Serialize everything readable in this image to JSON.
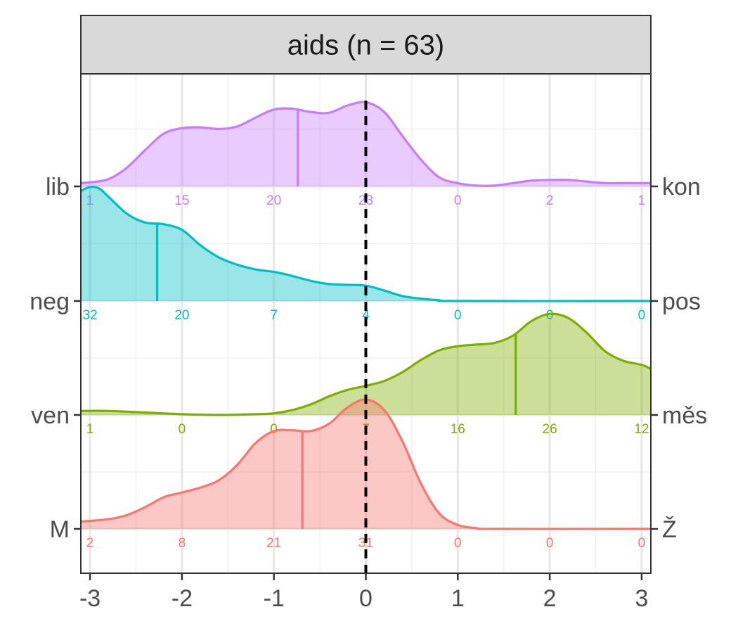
{
  "chart_data": {
    "type": "ridgeline density",
    "title": "aids (n = 63)",
    "x_ticks": [
      -3,
      -2,
      -1,
      0,
      1,
      2,
      3
    ],
    "xlim": [
      -3.1,
      3.1
    ],
    "reference_line_x": 0,
    "series": [
      {
        "left_label": "lib",
        "right_label": "kon",
        "color": "#C77CFF",
        "mean": -0.74,
        "counts": [
          {
            "x": -3,
            "label": "1"
          },
          {
            "x": -2,
            "label": "15"
          },
          {
            "x": -1,
            "label": "20"
          },
          {
            "x": 0,
            "label": "23"
          },
          {
            "x": 1,
            "label": "0"
          },
          {
            "x": 2,
            "label": "2"
          },
          {
            "x": 3,
            "label": "1"
          }
        ],
        "density": [
          [
            -3.1,
            0.04
          ],
          [
            -3.0,
            0.05
          ],
          [
            -2.8,
            0.09
          ],
          [
            -2.6,
            0.23
          ],
          [
            -2.4,
            0.45
          ],
          [
            -2.2,
            0.65
          ],
          [
            -2.0,
            0.72
          ],
          [
            -1.8,
            0.73
          ],
          [
            -1.6,
            0.71
          ],
          [
            -1.4,
            0.74
          ],
          [
            -1.2,
            0.85
          ],
          [
            -1.0,
            0.95
          ],
          [
            -0.8,
            0.96
          ],
          [
            -0.6,
            0.92
          ],
          [
            -0.4,
            0.91
          ],
          [
            -0.2,
            1.0
          ],
          [
            0.0,
            1.04
          ],
          [
            0.2,
            0.92
          ],
          [
            0.4,
            0.62
          ],
          [
            0.6,
            0.33
          ],
          [
            0.8,
            0.11
          ],
          [
            1.0,
            0.04
          ],
          [
            1.2,
            0.01
          ],
          [
            1.4,
            0.01
          ],
          [
            1.6,
            0.04
          ],
          [
            1.8,
            0.07
          ],
          [
            2.0,
            0.08
          ],
          [
            2.2,
            0.08
          ],
          [
            2.4,
            0.06
          ],
          [
            2.6,
            0.04
          ],
          [
            2.8,
            0.04
          ],
          [
            3.0,
            0.04
          ],
          [
            3.1,
            0.04
          ]
        ]
      },
      {
        "left_label": "neg",
        "right_label": "pos",
        "color": "#00BFC4",
        "mean": -2.27,
        "counts": [
          {
            "x": -3,
            "label": "32"
          },
          {
            "x": -2,
            "label": "20"
          },
          {
            "x": -1,
            "label": "7"
          },
          {
            "x": 0,
            "label": "4"
          },
          {
            "x": 1,
            "label": "0"
          },
          {
            "x": 2,
            "label": "0"
          },
          {
            "x": 3,
            "label": "0"
          }
        ],
        "density": [
          [
            -3.1,
            1.36
          ],
          [
            -3.0,
            1.41
          ],
          [
            -2.9,
            1.39
          ],
          [
            -2.8,
            1.29
          ],
          [
            -2.6,
            1.08
          ],
          [
            -2.4,
            0.97
          ],
          [
            -2.2,
            0.95
          ],
          [
            -2.0,
            0.88
          ],
          [
            -1.8,
            0.69
          ],
          [
            -1.6,
            0.54
          ],
          [
            -1.4,
            0.45
          ],
          [
            -1.2,
            0.39
          ],
          [
            -1.0,
            0.36
          ],
          [
            -0.8,
            0.31
          ],
          [
            -0.6,
            0.25
          ],
          [
            -0.4,
            0.21
          ],
          [
            -0.2,
            0.2
          ],
          [
            0.0,
            0.19
          ],
          [
            0.2,
            0.13
          ],
          [
            0.4,
            0.06
          ],
          [
            0.6,
            0.03
          ],
          [
            0.8,
            0.01
          ],
          [
            1.0,
            0.0
          ],
          [
            3.1,
            0.0
          ]
        ]
      },
      {
        "left_label": "ven",
        "right_label": "měs",
        "color": "#7CAE00",
        "mean": 1.63,
        "counts": [
          {
            "x": -3,
            "label": "1"
          },
          {
            "x": -2,
            "label": "0"
          },
          {
            "x": -1,
            "label": "0"
          },
          {
            "x": 0,
            "label": "7"
          },
          {
            "x": 1,
            "label": "16"
          },
          {
            "x": 2,
            "label": "26"
          },
          {
            "x": 3,
            "label": "12"
          }
        ],
        "density": [
          [
            -3.1,
            0.05
          ],
          [
            -2.8,
            0.05
          ],
          [
            -2.4,
            0.03
          ],
          [
            -2.0,
            0.01
          ],
          [
            -1.6,
            0.0
          ],
          [
            -1.2,
            0.01
          ],
          [
            -1.0,
            0.02
          ],
          [
            -0.8,
            0.06
          ],
          [
            -0.6,
            0.13
          ],
          [
            -0.4,
            0.23
          ],
          [
            -0.2,
            0.31
          ],
          [
            0.0,
            0.36
          ],
          [
            0.2,
            0.42
          ],
          [
            0.4,
            0.53
          ],
          [
            0.6,
            0.68
          ],
          [
            0.8,
            0.8
          ],
          [
            1.0,
            0.85
          ],
          [
            1.2,
            0.87
          ],
          [
            1.4,
            0.89
          ],
          [
            1.6,
            0.98
          ],
          [
            1.8,
            1.16
          ],
          [
            2.0,
            1.25
          ],
          [
            2.2,
            1.2
          ],
          [
            2.4,
            1.02
          ],
          [
            2.6,
            0.79
          ],
          [
            2.8,
            0.67
          ],
          [
            3.0,
            0.62
          ],
          [
            3.1,
            0.57
          ]
        ]
      },
      {
        "left_label": "M",
        "right_label": "Ž",
        "color": "#F8766D",
        "mean": -0.69,
        "counts": [
          {
            "x": -3,
            "label": "2"
          },
          {
            "x": -2,
            "label": "8"
          },
          {
            "x": -1,
            "label": "21"
          },
          {
            "x": 0,
            "label": "31"
          },
          {
            "x": 1,
            "label": "0"
          },
          {
            "x": 2,
            "label": "0"
          },
          {
            "x": 3,
            "label": "0"
          }
        ],
        "density": [
          [
            -3.1,
            0.09
          ],
          [
            -2.8,
            0.12
          ],
          [
            -2.6,
            0.17
          ],
          [
            -2.4,
            0.27
          ],
          [
            -2.2,
            0.39
          ],
          [
            -2.0,
            0.45
          ],
          [
            -1.8,
            0.51
          ],
          [
            -1.6,
            0.6
          ],
          [
            -1.4,
            0.79
          ],
          [
            -1.2,
            1.06
          ],
          [
            -1.0,
            1.21
          ],
          [
            -0.8,
            1.22
          ],
          [
            -0.6,
            1.21
          ],
          [
            -0.4,
            1.3
          ],
          [
            -0.2,
            1.5
          ],
          [
            0.0,
            1.6
          ],
          [
            0.2,
            1.47
          ],
          [
            0.4,
            1.08
          ],
          [
            0.6,
            0.56
          ],
          [
            0.8,
            0.19
          ],
          [
            1.0,
            0.05
          ],
          [
            1.2,
            0.01
          ],
          [
            1.4,
            0.0
          ],
          [
            3.1,
            0.0
          ]
        ]
      }
    ]
  }
}
